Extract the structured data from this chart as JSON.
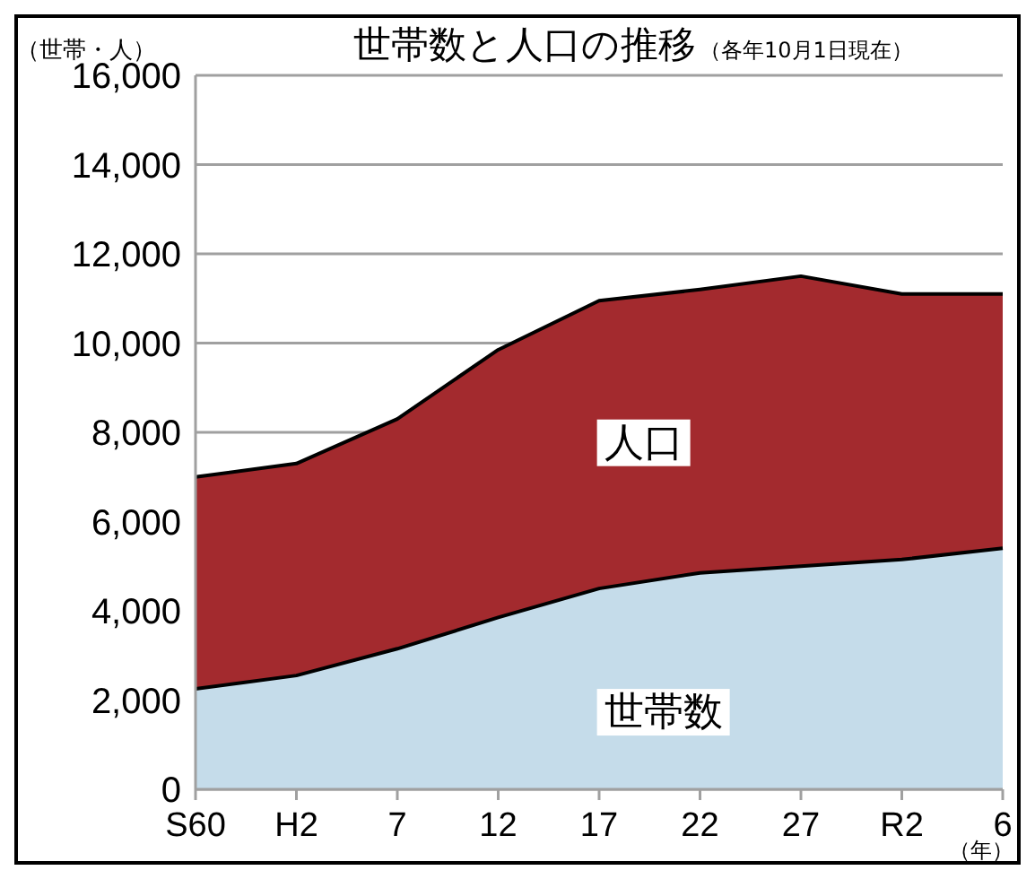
{
  "chart_data": {
    "type": "area",
    "title": "世帯数と人口の推移",
    "subtitle": "（各年10月1日現在）",
    "ylabel": "（世帯・人）",
    "xlabel": "（年）",
    "categories": [
      "S60",
      "H2",
      "7",
      "12",
      "17",
      "22",
      "27",
      "R2",
      "6"
    ],
    "series": [
      {
        "name": "人口",
        "color": "#a32a2e",
        "values": [
          7000,
          7300,
          8300,
          9850,
          10950,
          11200,
          11500,
          11100,
          11100
        ]
      },
      {
        "name": "世帯数",
        "color": "#c5dcea",
        "values": [
          2250,
          2550,
          3150,
          3850,
          4500,
          4850,
          5000,
          5150,
          5400
        ]
      }
    ],
    "ylim": [
      0,
      16000
    ],
    "yticks": [
      {
        "value": 0,
        "label": "0"
      },
      {
        "value": 2000,
        "label": "2,000"
      },
      {
        "value": 4000,
        "label": "4,000"
      },
      {
        "value": 6000,
        "label": "6,000"
      },
      {
        "value": 8000,
        "label": "8,000"
      },
      {
        "value": 10000,
        "label": "10,000"
      },
      {
        "value": 12000,
        "label": "12,000"
      },
      {
        "value": 14000,
        "label": "14,000"
      },
      {
        "value": 16000,
        "label": "16,000"
      }
    ],
    "grid": "y"
  }
}
